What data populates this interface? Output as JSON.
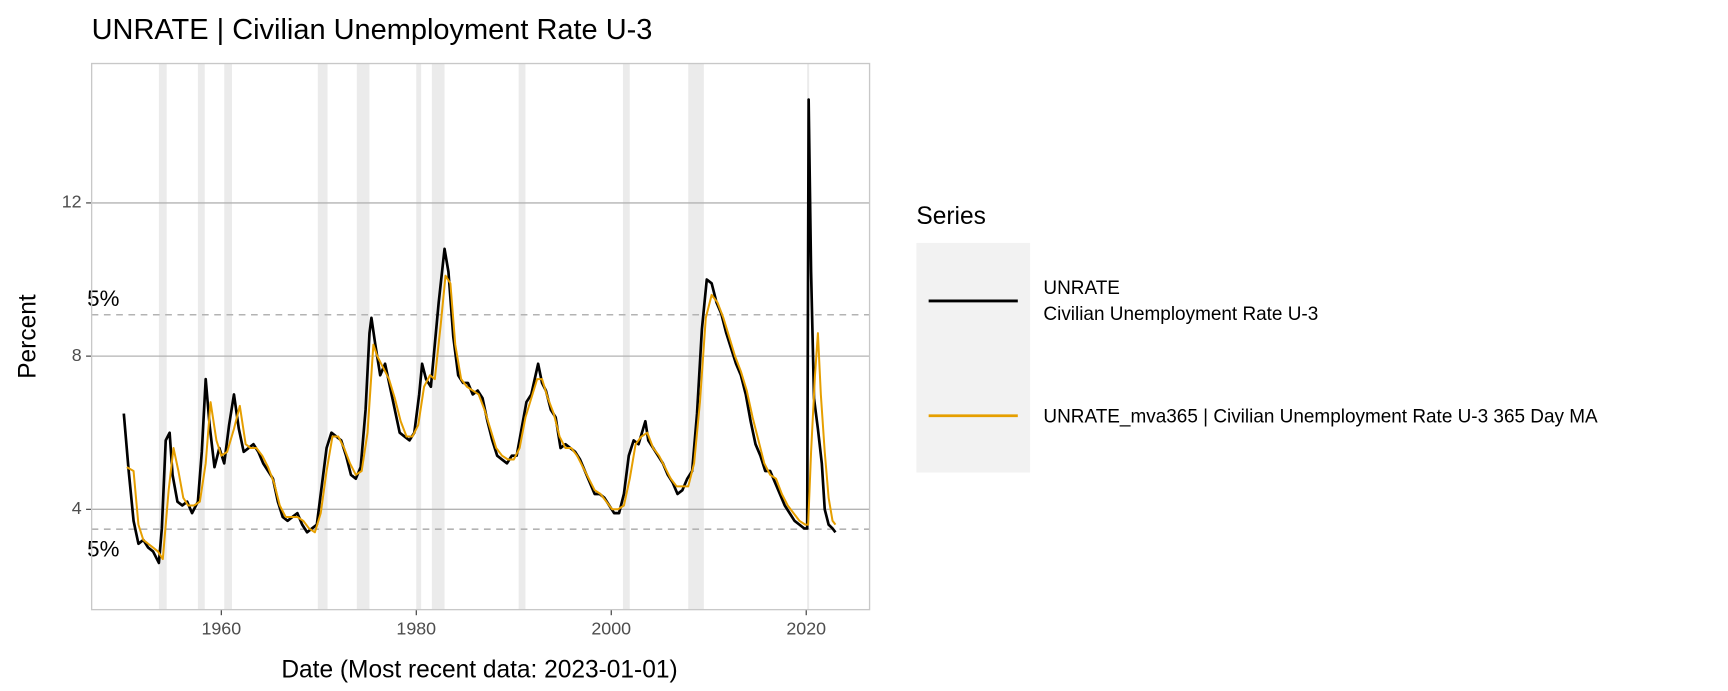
{
  "chart_data": {
    "type": "line",
    "title": "UNRATE | Civilian Unemployment Rate U-3",
    "x_label": "Date (Most recent data: 2023-01-01)",
    "y_label": "Percent",
    "legend_title": "Series",
    "legend_position": "right",
    "grid": true,
    "xlim": [
      1946.7,
      2026.5
    ],
    "ylim": [
      1.38,
      15.64
    ],
    "xticks": [
      1960,
      1980,
      2000,
      2020
    ],
    "yticks": [
      4,
      8,
      12
    ],
    "shaded_periods": [
      [
        1953.6,
        1954.4
      ],
      [
        1957.6,
        1958.3
      ],
      [
        1960.3,
        1961.1
      ],
      [
        1969.9,
        1970.9
      ],
      [
        1973.9,
        1975.2
      ],
      [
        1980.0,
        1980.5
      ],
      [
        1981.6,
        1982.9
      ],
      [
        1990.5,
        1991.2
      ],
      [
        2001.2,
        2001.9
      ],
      [
        2007.9,
        2009.5
      ],
      [
        2020.1,
        2020.3
      ]
    ],
    "shade_color": "#ebebeb",
    "hlines": [
      {
        "value": 9.08,
        "label": "5%"
      },
      {
        "value": 3.48,
        "label": "5%"
      }
    ],
    "series": [
      {
        "name": "UNRATE\nCivilian Unemployment Rate U-3",
        "color": "#000000",
        "x": [
          1950.0,
          1950.5,
          1951.0,
          1951.5,
          1952.0,
          1952.5,
          1953.0,
          1953.6,
          1953.9,
          1954.3,
          1954.7,
          1955.0,
          1955.5,
          1956.0,
          1956.5,
          1957.0,
          1957.6,
          1958.0,
          1958.4,
          1958.8,
          1959.3,
          1959.8,
          1960.3,
          1960.8,
          1961.3,
          1961.8,
          1962.3,
          1962.8,
          1963.3,
          1963.8,
          1964.3,
          1964.8,
          1965.3,
          1965.8,
          1966.3,
          1966.8,
          1967.3,
          1967.8,
          1968.3,
          1968.8,
          1969.3,
          1969.8,
          1970.3,
          1970.8,
          1971.3,
          1971.8,
          1972.3,
          1972.8,
          1973.3,
          1973.8,
          1974.3,
          1974.8,
          1975.2,
          1975.4,
          1975.8,
          1976.3,
          1976.8,
          1977.3,
          1977.8,
          1978.3,
          1978.8,
          1979.3,
          1979.8,
          1980.3,
          1980.6,
          1981.0,
          1981.5,
          1981.9,
          1982.3,
          1982.9,
          1983.3,
          1983.8,
          1984.3,
          1984.8,
          1985.3,
          1985.8,
          1986.3,
          1986.8,
          1987.3,
          1987.8,
          1988.3,
          1988.8,
          1989.3,
          1989.8,
          1990.3,
          1990.8,
          1991.3,
          1991.8,
          1992.5,
          1992.9,
          1993.3,
          1993.8,
          1994.3,
          1994.8,
          1995.3,
          1995.8,
          1996.3,
          1996.8,
          1997.3,
          1997.8,
          1998.3,
          1998.8,
          1999.3,
          1999.8,
          2000.3,
          2000.8,
          2001.3,
          2001.8,
          2002.3,
          2002.8,
          2003.5,
          2003.8,
          2004.3,
          2004.8,
          2005.3,
          2005.8,
          2006.3,
          2006.8,
          2007.3,
          2007.8,
          2008.3,
          2008.8,
          2009.3,
          2009.8,
          2010.3,
          2010.8,
          2011.3,
          2011.8,
          2012.3,
          2012.8,
          2013.3,
          2013.8,
          2014.3,
          2014.8,
          2015.3,
          2015.8,
          2016.3,
          2016.8,
          2017.3,
          2017.8,
          2018.3,
          2018.8,
          2019.3,
          2019.8,
          2020.1,
          2020.25,
          2020.5,
          2020.8,
          2021.2,
          2021.6,
          2021.9,
          2022.3,
          2022.7,
          2023.0
        ],
        "values": [
          6.5,
          5.0,
          3.7,
          3.1,
          3.2,
          3.0,
          2.9,
          2.6,
          3.5,
          5.8,
          6.0,
          4.9,
          4.2,
          4.1,
          4.2,
          3.9,
          4.2,
          5.5,
          7.4,
          6.2,
          5.1,
          5.6,
          5.2,
          6.2,
          7.0,
          6.1,
          5.5,
          5.6,
          5.7,
          5.5,
          5.2,
          5.0,
          4.8,
          4.2,
          3.8,
          3.7,
          3.8,
          3.9,
          3.6,
          3.4,
          3.5,
          3.6,
          4.6,
          5.6,
          6.0,
          5.9,
          5.8,
          5.4,
          4.9,
          4.8,
          5.1,
          6.6,
          8.6,
          9.0,
          8.3,
          7.5,
          7.8,
          7.2,
          6.6,
          6.0,
          5.9,
          5.8,
          6.0,
          7.0,
          7.8,
          7.4,
          7.2,
          8.3,
          9.4,
          10.8,
          10.2,
          8.5,
          7.5,
          7.3,
          7.3,
          7.0,
          7.1,
          6.9,
          6.3,
          5.8,
          5.4,
          5.3,
          5.2,
          5.4,
          5.4,
          6.1,
          6.8,
          7.0,
          7.8,
          7.3,
          7.1,
          6.6,
          6.4,
          5.6,
          5.7,
          5.6,
          5.5,
          5.3,
          5.0,
          4.7,
          4.4,
          4.4,
          4.3,
          4.1,
          3.9,
          3.9,
          4.4,
          5.4,
          5.8,
          5.7,
          6.3,
          5.8,
          5.6,
          5.4,
          5.2,
          4.9,
          4.7,
          4.4,
          4.5,
          4.8,
          5.0,
          6.5,
          8.7,
          10.0,
          9.9,
          9.4,
          9.1,
          8.6,
          8.2,
          7.8,
          7.5,
          7.0,
          6.3,
          5.7,
          5.4,
          5.0,
          5.0,
          4.7,
          4.4,
          4.1,
          3.9,
          3.7,
          3.6,
          3.5,
          3.5,
          14.7,
          10.2,
          6.9,
          6.1,
          5.2,
          4.0,
          3.6,
          3.5,
          3.4
        ]
      },
      {
        "name": "UNRATE_mva365 | Civilian Unemployment Rate U-3 365 Day MA",
        "color": "#E69F00",
        "x": [
          1950.3,
          1951.0,
          1951.5,
          1952.0,
          1952.5,
          1953.0,
          1953.5,
          1954.0,
          1954.6,
          1955.1,
          1955.6,
          1956.1,
          1956.6,
          1957.2,
          1957.8,
          1958.4,
          1958.9,
          1959.5,
          1960.0,
          1960.6,
          1961.3,
          1961.9,
          1962.5,
          1963.0,
          1963.6,
          1964.2,
          1964.8,
          1965.4,
          1966.0,
          1966.6,
          1967.2,
          1967.8,
          1968.4,
          1969.0,
          1969.6,
          1970.2,
          1970.8,
          1971.4,
          1972.0,
          1972.6,
          1973.2,
          1973.8,
          1974.4,
          1975.0,
          1975.6,
          1976.0,
          1976.6,
          1977.2,
          1977.8,
          1978.4,
          1979.0,
          1979.6,
          1980.2,
          1980.8,
          1981.4,
          1981.9,
          1982.5,
          1983.0,
          1983.5,
          1984.0,
          1984.6,
          1985.2,
          1985.8,
          1986.4,
          1987.0,
          1987.6,
          1988.2,
          1988.8,
          1989.4,
          1990.0,
          1990.6,
          1991.2,
          1991.8,
          1992.4,
          1992.9,
          1993.5,
          1994.1,
          1994.7,
          1995.3,
          1995.9,
          1996.5,
          1997.1,
          1997.7,
          1998.3,
          1998.9,
          1999.5,
          2000.1,
          2000.7,
          2001.3,
          2001.9,
          2002.5,
          2003.1,
          2003.7,
          2004.3,
          2004.9,
          2005.5,
          2006.1,
          2006.7,
          2007.3,
          2007.9,
          2008.5,
          2009.1,
          2009.7,
          2010.3,
          2010.9,
          2011.5,
          2012.1,
          2012.7,
          2013.3,
          2013.9,
          2014.5,
          2015.1,
          2015.7,
          2016.3,
          2016.9,
          2017.5,
          2018.1,
          2018.7,
          2019.3,
          2019.9,
          2020.2,
          2020.5,
          2020.9,
          2021.2,
          2021.5,
          2021.9,
          2022.3,
          2022.7,
          2023.0
        ],
        "values": [
          5.1,
          5.0,
          3.6,
          3.2,
          3.1,
          3.0,
          2.9,
          2.7,
          4.5,
          5.6,
          5.0,
          4.3,
          4.1,
          4.1,
          4.2,
          5.2,
          6.8,
          5.8,
          5.4,
          5.5,
          6.1,
          6.7,
          5.7,
          5.6,
          5.6,
          5.4,
          5.1,
          4.7,
          4.1,
          3.8,
          3.8,
          3.8,
          3.7,
          3.5,
          3.4,
          3.9,
          5.0,
          5.9,
          5.9,
          5.6,
          5.2,
          4.9,
          5.0,
          6.0,
          8.3,
          8.0,
          7.7,
          7.4,
          6.9,
          6.3,
          5.9,
          5.9,
          6.2,
          7.2,
          7.5,
          7.4,
          8.8,
          10.1,
          9.9,
          8.3,
          7.4,
          7.2,
          7.1,
          7.0,
          6.6,
          6.1,
          5.6,
          5.4,
          5.3,
          5.3,
          5.6,
          6.4,
          6.9,
          7.4,
          7.4,
          6.9,
          6.5,
          5.9,
          5.6,
          5.6,
          5.4,
          5.1,
          4.8,
          4.5,
          4.4,
          4.2,
          4.0,
          4.0,
          4.1,
          4.8,
          5.7,
          5.9,
          6.0,
          5.6,
          5.4,
          5.1,
          4.8,
          4.6,
          4.6,
          4.6,
          5.2,
          6.8,
          9.0,
          9.6,
          9.4,
          9.0,
          8.5,
          8.0,
          7.6,
          7.1,
          6.4,
          5.8,
          5.2,
          4.9,
          4.8,
          4.4,
          4.1,
          3.9,
          3.7,
          3.6,
          3.6,
          5.5,
          7.5,
          8.6,
          7.0,
          5.5,
          4.3,
          3.7,
          3.6
        ]
      }
    ]
  }
}
